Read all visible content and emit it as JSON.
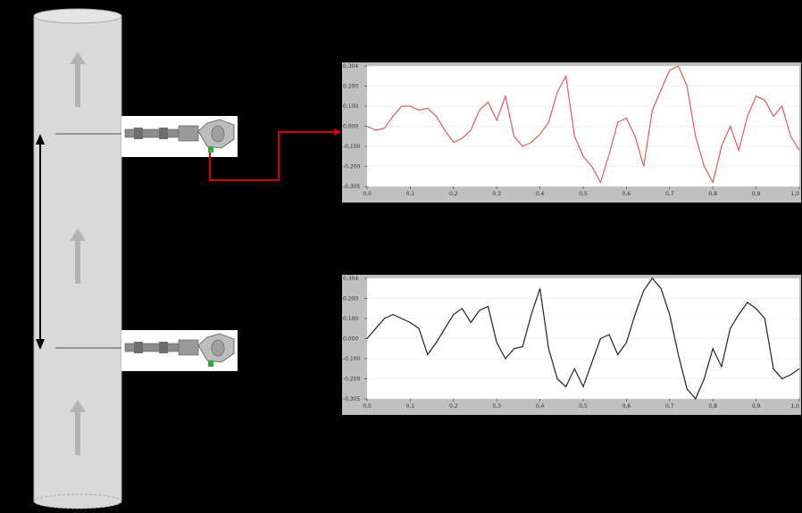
{
  "colors": {
    "background": "#000000",
    "pipe_fill": "#d9d9d9",
    "pipe_stroke": "#a9a9a9",
    "flow_arrow": "#b3b3b3",
    "signal_top": "#e35b5b",
    "signal_bottom": "#222222",
    "connector": "#d40000",
    "chart_frame": "#c0c0c0",
    "chart_plot": "#ffffff",
    "distance_arrow": "#000000"
  },
  "icons": {
    "flow": "up-arrow-icon",
    "sensor": "probe-sensor-icon",
    "distance": "double-headed-arrow-icon"
  },
  "chart_data": [
    {
      "type": "line",
      "xlim": [
        0,
        1
      ],
      "ylim": [
        -0.3,
        0.3
      ],
      "x_ticks": [
        "0,0",
        "0,1",
        "0,2",
        "0,3",
        "0,4",
        "0,5",
        "0,6",
        "0,7",
        "0,8",
        "0,9",
        "1,0"
      ],
      "y_ticks": [
        "0,304",
        "0,200",
        "0,100",
        "0,000",
        "-0,100",
        "-0,200",
        "-0,305"
      ],
      "x": [
        0,
        0.02,
        0.04,
        0.06,
        0.08,
        0.1,
        0.12,
        0.14,
        0.16,
        0.18,
        0.2,
        0.22,
        0.24,
        0.26,
        0.28,
        0.3,
        0.32,
        0.34,
        0.36,
        0.38,
        0.4,
        0.42,
        0.44,
        0.46,
        0.48,
        0.5,
        0.52,
        0.54,
        0.56,
        0.58,
        0.6,
        0.62,
        0.64,
        0.66,
        0.68,
        0.7,
        0.72,
        0.74,
        0.76,
        0.78,
        0.8,
        0.82,
        0.84,
        0.86,
        0.88,
        0.9,
        0.92,
        0.94,
        0.96,
        0.98,
        1.0
      ],
      "values": [
        0.0,
        -0.02,
        -0.01,
        0.05,
        0.1,
        0.1,
        0.08,
        0.09,
        0.05,
        -0.02,
        -0.08,
        -0.06,
        -0.02,
        0.08,
        0.12,
        0.03,
        0.15,
        -0.05,
        -0.1,
        -0.08,
        -0.04,
        0.02,
        0.17,
        0.25,
        -0.05,
        -0.15,
        -0.2,
        -0.28,
        -0.14,
        0.02,
        0.04,
        -0.05,
        -0.2,
        0.08,
        0.18,
        0.28,
        0.3,
        0.2,
        -0.05,
        -0.2,
        -0.28,
        -0.1,
        0.0,
        -0.12,
        0.05,
        0.15,
        0.13,
        0.05,
        0.1,
        -0.05,
        -0.12
      ]
    },
    {
      "type": "line",
      "xlim": [
        0,
        1
      ],
      "ylim": [
        -0.3,
        0.3
      ],
      "x_ticks": [
        "0,0",
        "0,1",
        "0,2",
        "0,3",
        "0,4",
        "0,5",
        "0,6",
        "0,7",
        "0,8",
        "0,9",
        "1,0"
      ],
      "y_ticks": [
        "0,304",
        "0,200",
        "0,100",
        "0,000",
        "-0,100",
        "-0,200",
        "-0,305"
      ],
      "x": [
        0,
        0.02,
        0.04,
        0.06,
        0.08,
        0.1,
        0.12,
        0.14,
        0.16,
        0.18,
        0.2,
        0.22,
        0.24,
        0.26,
        0.28,
        0.3,
        0.32,
        0.34,
        0.36,
        0.38,
        0.4,
        0.42,
        0.44,
        0.46,
        0.48,
        0.5,
        0.52,
        0.54,
        0.56,
        0.58,
        0.6,
        0.62,
        0.64,
        0.66,
        0.68,
        0.7,
        0.72,
        0.74,
        0.76,
        0.78,
        0.8,
        0.82,
        0.84,
        0.86,
        0.88,
        0.9,
        0.92,
        0.94,
        0.96,
        0.98,
        1.0
      ],
      "values": [
        0.0,
        0.05,
        0.1,
        0.12,
        0.1,
        0.08,
        0.05,
        -0.08,
        -0.02,
        0.05,
        0.12,
        0.15,
        0.08,
        0.14,
        0.16,
        -0.02,
        -0.1,
        -0.05,
        -0.04,
        0.12,
        0.25,
        -0.05,
        -0.2,
        -0.24,
        -0.15,
        -0.24,
        -0.12,
        0.0,
        0.02,
        -0.08,
        -0.02,
        0.12,
        0.24,
        0.3,
        0.25,
        0.12,
        -0.08,
        -0.25,
        -0.3,
        -0.2,
        -0.05,
        -0.14,
        0.05,
        0.12,
        0.18,
        0.15,
        0.1,
        -0.15,
        -0.2,
        -0.18,
        -0.15
      ]
    }
  ]
}
